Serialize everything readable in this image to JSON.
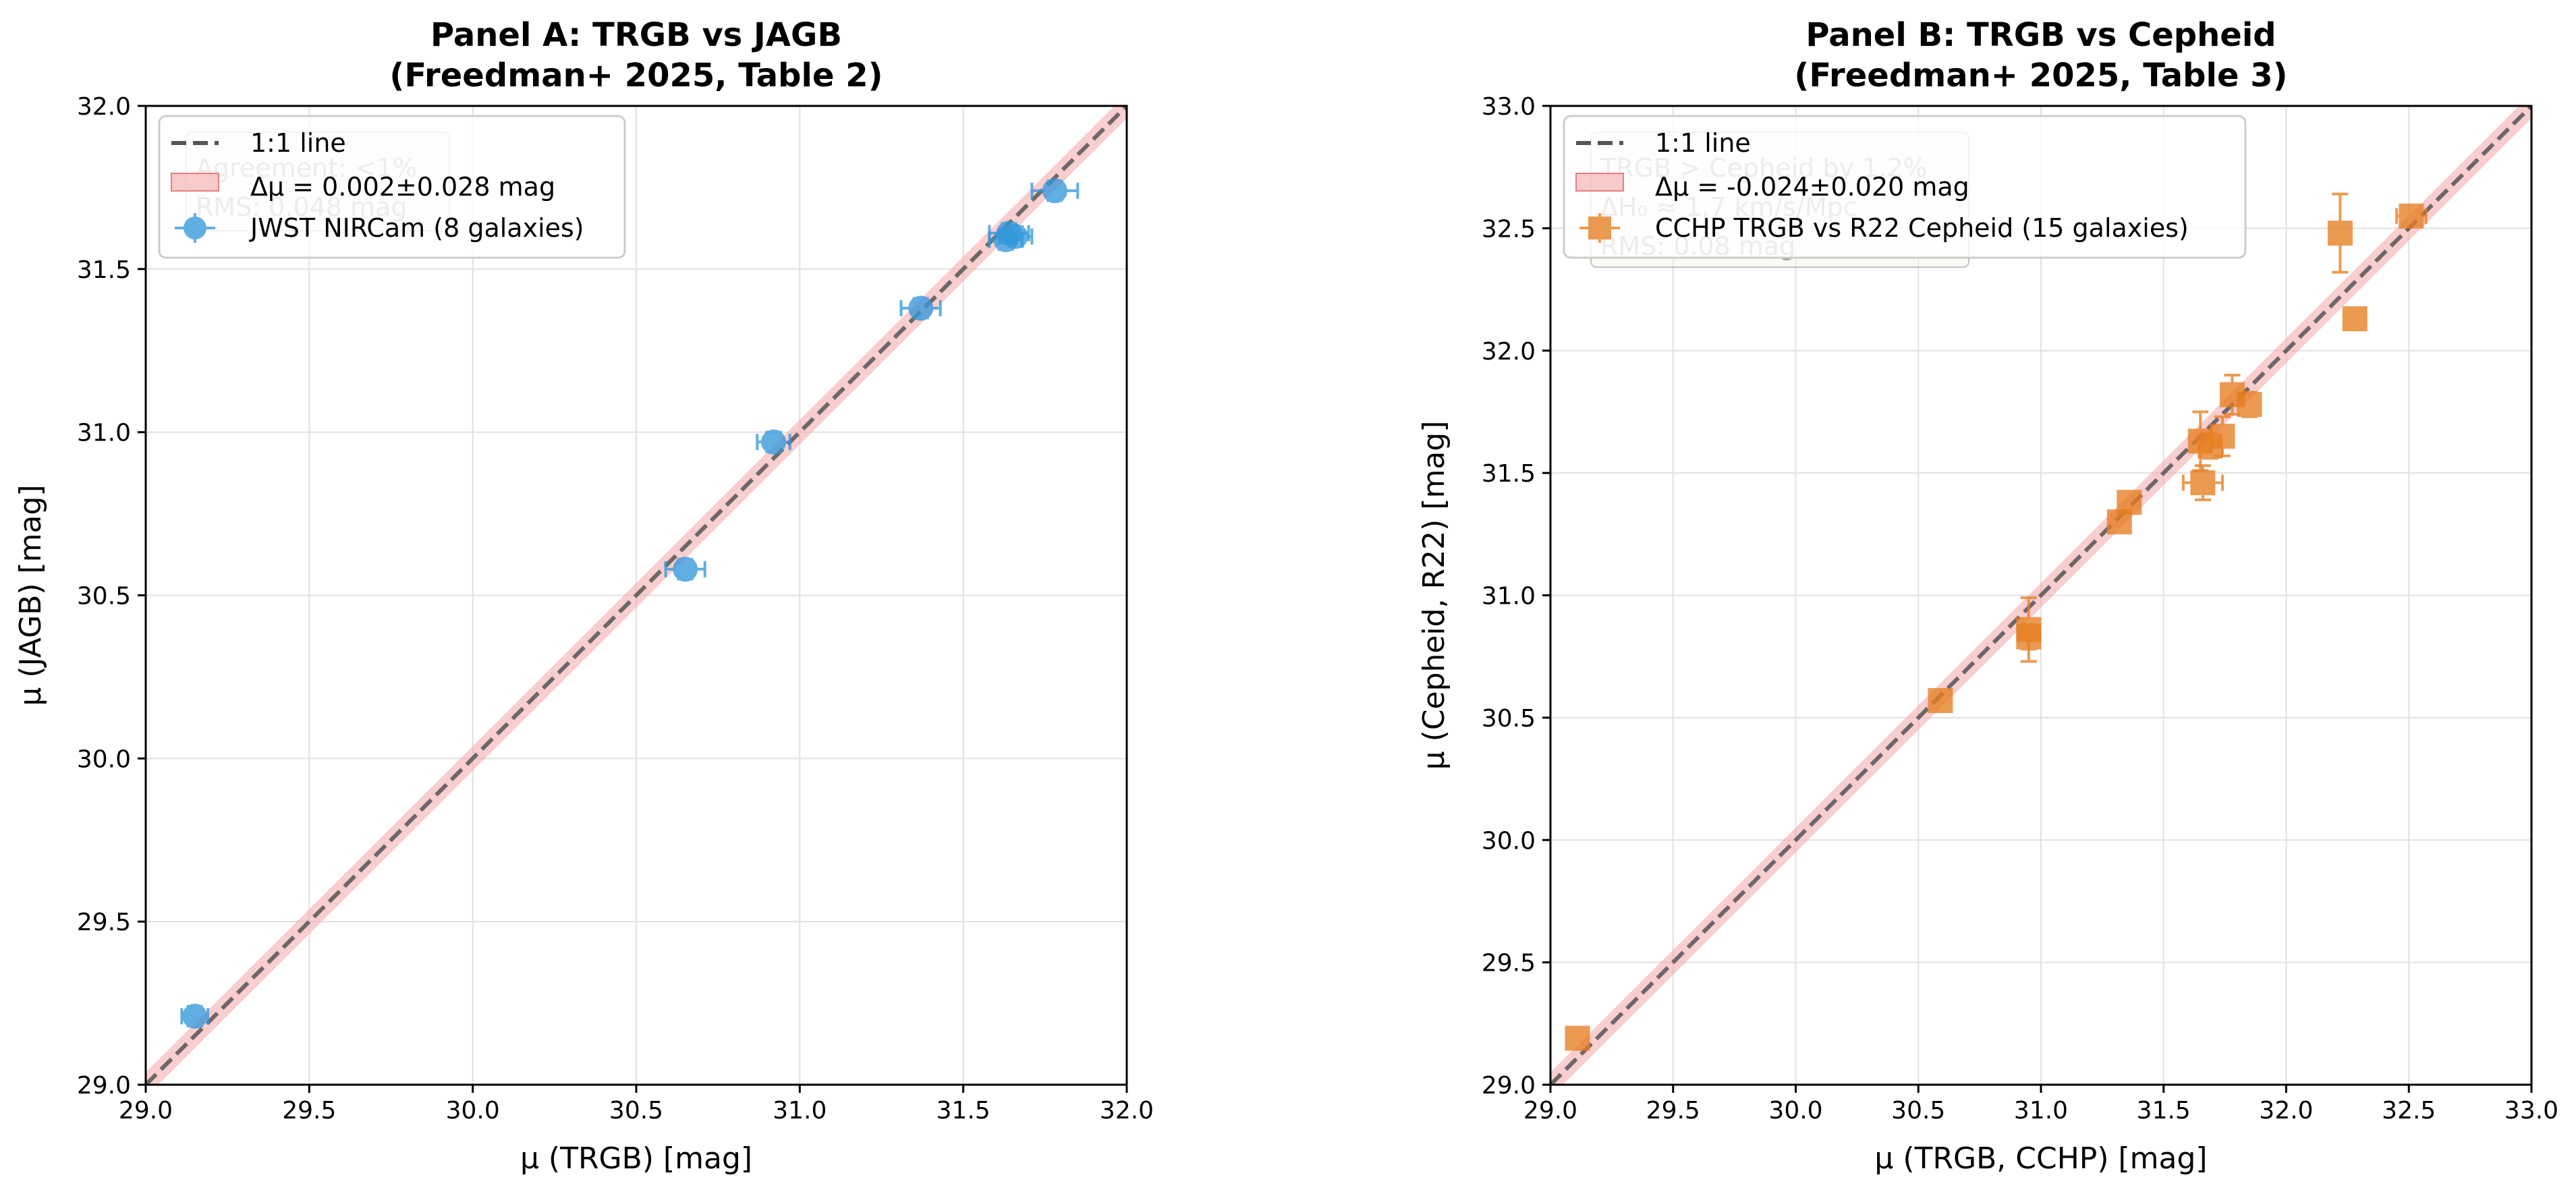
{
  "chart_data": [
    {
      "type": "scatter",
      "title": "Panel A: TRGB vs JAGB",
      "subtitle": "(Freedman+ 2025, Table 2)",
      "xlabel": "μ (TRGB) [mag]",
      "ylabel": "μ (JAGB) [mag]",
      "xlim": [
        29.0,
        32.0
      ],
      "ylim": [
        29.0,
        32.0
      ],
      "xticks": [
        "29.0",
        "29.5",
        "30.0",
        "30.5",
        "31.0",
        "31.5",
        "32.0"
      ],
      "yticks": [
        "29.0",
        "29.5",
        "30.0",
        "30.5",
        "31.0",
        "31.5",
        "32.0"
      ],
      "grid": true,
      "legend_position": "top-left",
      "legend": [
        "1:1 line",
        "Δμ = 0.002±0.028 mag",
        "JWST NIRCam (8 galaxies)"
      ],
      "annotation": [
        "Agreement: <1%",
        "RMS: 0.048 mag"
      ],
      "series": [
        {
          "name": "JWST NIRCam (8 galaxies)",
          "color": "#3498db",
          "marker": "circle",
          "points": [
            {
              "x": 29.15,
              "y": 29.21,
              "xerr": 0.04,
              "yerr": 0.03
            },
            {
              "x": 30.65,
              "y": 30.58,
              "xerr": 0.06,
              "yerr": 0.03
            },
            {
              "x": 30.92,
              "y": 30.97,
              "xerr": 0.05,
              "yerr": 0.03
            },
            {
              "x": 31.37,
              "y": 31.38,
              "xerr": 0.06,
              "yerr": 0.03
            },
            {
              "x": 31.63,
              "y": 31.59,
              "xerr": 0.05,
              "yerr": 0.03
            },
            {
              "x": 31.64,
              "y": 31.61,
              "xerr": 0.06,
              "yerr": 0.03
            },
            {
              "x": 31.66,
              "y": 31.6,
              "xerr": 0.05,
              "yerr": 0.03
            },
            {
              "x": 31.78,
              "y": 31.74,
              "xerr": 0.07,
              "yerr": 0.03
            }
          ]
        }
      ],
      "reference": {
        "name": "1:1 line",
        "band_name": "Δμ = 0.002±0.028 mag",
        "line_color": "#555555",
        "band_color": "#f4a6a6"
      }
    },
    {
      "type": "scatter",
      "title": "Panel B: TRGB vs Cepheid",
      "subtitle": "(Freedman+ 2025, Table 3)",
      "xlabel": "μ (TRGB, CCHP) [mag]",
      "ylabel": "μ (Cepheid, R22) [mag]",
      "xlim": [
        29.0,
        33.0
      ],
      "ylim": [
        29.0,
        33.0
      ],
      "xticks": [
        "29.0",
        "29.5",
        "30.0",
        "30.5",
        "31.0",
        "31.5",
        "32.0",
        "32.5",
        "33.0"
      ],
      "yticks": [
        "29.0",
        "29.5",
        "30.0",
        "30.5",
        "31.0",
        "31.5",
        "32.0",
        "32.5",
        "33.0"
      ],
      "grid": true,
      "legend_position": "top-left",
      "legend": [
        "1:1 line",
        "Δμ = -0.024±0.020 mag",
        "CCHP TRGB vs R22 Cepheid (15 galaxies)"
      ],
      "annotation": [
        "TRGB > Cepheid by 1.2%",
        "ΔH₀ ≈ 1.7 km/s/Mpc",
        "RMS: 0.08 mag"
      ],
      "series": [
        {
          "name": "CCHP TRGB vs R22 Cepheid (15 galaxies)",
          "color": "#e67e22",
          "marker": "square",
          "points": [
            {
              "x": 29.11,
              "y": 29.19,
              "xerr": 0.03,
              "yerr": 0.03
            },
            {
              "x": 30.59,
              "y": 30.57,
              "xerr": 0.03,
              "yerr": 0.03
            },
            {
              "x": 30.95,
              "y": 30.86,
              "xerr": 0.03,
              "yerr": 0.13
            },
            {
              "x": 30.95,
              "y": 30.83,
              "xerr": 0.03,
              "yerr": 0.05
            },
            {
              "x": 31.32,
              "y": 31.3,
              "xerr": 0.03,
              "yerr": 0.03
            },
            {
              "x": 31.36,
              "y": 31.38,
              "xerr": 0.03,
              "yerr": 0.04
            },
            {
              "x": 31.65,
              "y": 31.63,
              "xerr": 0.03,
              "yerr": 0.12
            },
            {
              "x": 31.66,
              "y": 31.46,
              "xerr": 0.08,
              "yerr": 0.07
            },
            {
              "x": 31.69,
              "y": 31.61,
              "xerr": 0.03,
              "yerr": 0.05
            },
            {
              "x": 31.74,
              "y": 31.65,
              "xerr": 0.04,
              "yerr": 0.08
            },
            {
              "x": 31.78,
              "y": 31.82,
              "xerr": 0.04,
              "yerr": 0.08
            },
            {
              "x": 31.85,
              "y": 31.78,
              "xerr": 0.04,
              "yerr": 0.05
            },
            {
              "x": 32.22,
              "y": 32.48,
              "xerr": 0.03,
              "yerr": 0.16
            },
            {
              "x": 32.28,
              "y": 32.13,
              "xerr": 0.03,
              "yerr": 0.03
            },
            {
              "x": 32.51,
              "y": 32.55,
              "xerr": 0.06,
              "yerr": 0.04
            }
          ]
        }
      ],
      "reference": {
        "name": "1:1 line",
        "band_name": "Δμ = -0.024±0.020 mag",
        "line_color": "#555555",
        "band_color": "#f4a6a6"
      }
    }
  ]
}
